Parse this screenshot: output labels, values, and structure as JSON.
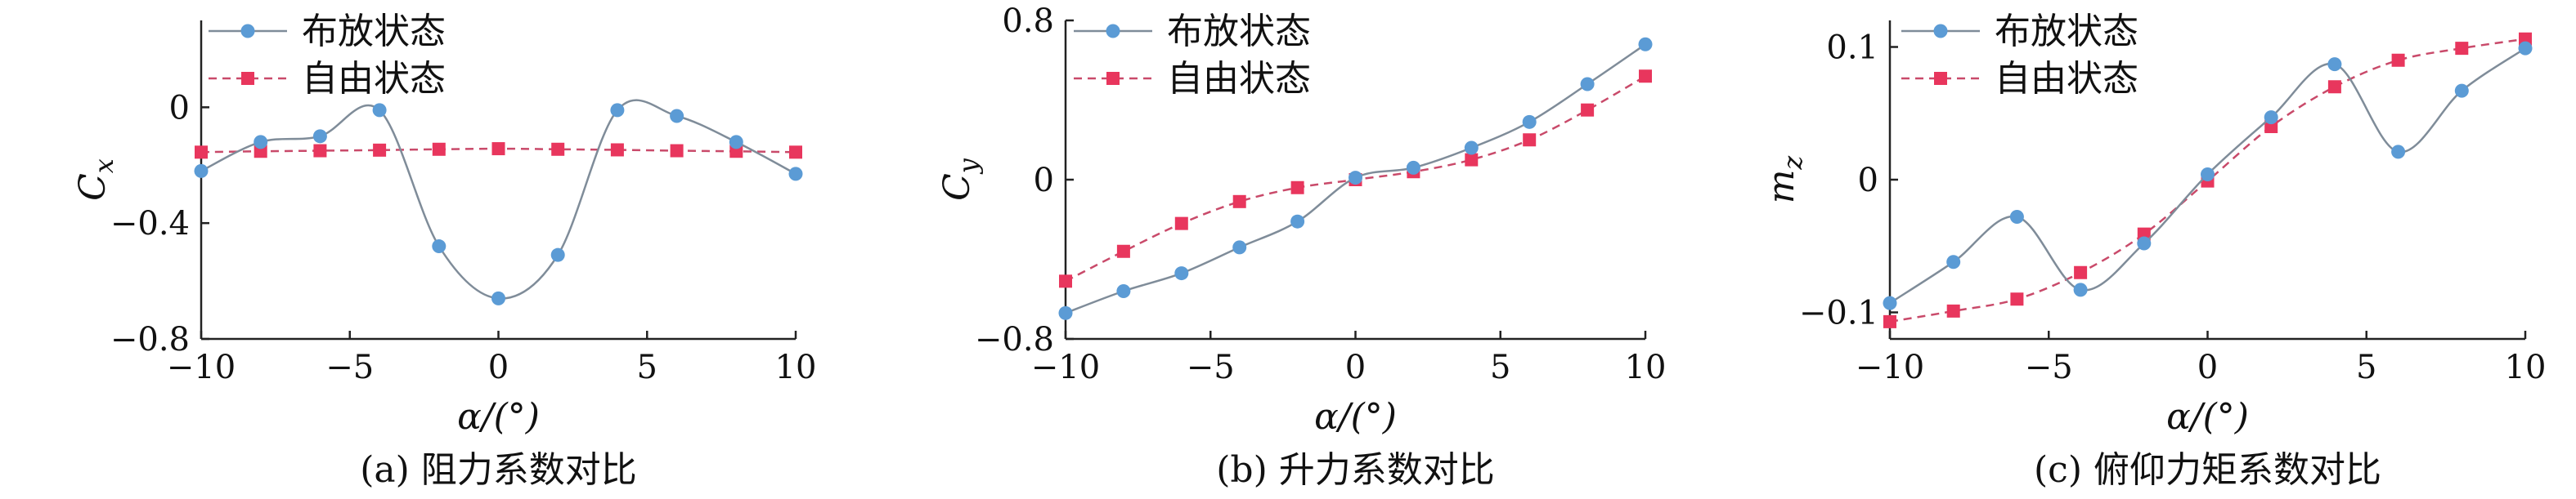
{
  "chart_data": [
    {
      "type": "line",
      "panel": "a",
      "caption": "(a) 阻力系数对比",
      "xlabel": "α/(°)",
      "ylabel": "C_x",
      "ylabel_main": "C",
      "ylabel_sub": "x",
      "xlim": [
        -10,
        10
      ],
      "ylim": [
        -0.8,
        0.3
      ],
      "xticks": [
        -10,
        -5,
        0,
        5,
        10
      ],
      "xtick_labels": [
        "−10",
        "−5",
        "0",
        "5",
        "10"
      ],
      "yticks": [
        0,
        -0.4,
        -0.8
      ],
      "ytick_labels": [
        "0",
        "−0.4",
        "−0.8"
      ],
      "grid": false,
      "legend_position": "top-left",
      "x": [
        -10,
        -8,
        -6,
        -4,
        -2,
        0,
        2,
        4,
        6,
        8,
        10
      ],
      "series": [
        {
          "name": "布放状态",
          "color": "#5b9bd5",
          "line_color": "#7f8c99",
          "marker": "circle",
          "line_style": "solid",
          "values": [
            -0.22,
            -0.12,
            -0.1,
            -0.01,
            -0.48,
            -0.66,
            -0.51,
            -0.01,
            -0.03,
            -0.12,
            -0.23
          ]
        },
        {
          "name": "自由状态",
          "color": "#e8365d",
          "line_color": "#c94a6a",
          "marker": "square",
          "line_style": "dashed",
          "values": [
            -0.155,
            -0.152,
            -0.15,
            -0.148,
            -0.145,
            -0.143,
            -0.145,
            -0.147,
            -0.15,
            -0.152,
            -0.155
          ]
        }
      ]
    },
    {
      "type": "line",
      "panel": "b",
      "caption": "(b) 升力系数对比",
      "xlabel": "α/(°)",
      "ylabel": "C_y",
      "ylabel_main": "C",
      "ylabel_sub": "y",
      "xlim": [
        -10,
        10
      ],
      "ylim": [
        -0.8,
        0.8
      ],
      "xticks": [
        -10,
        -5,
        0,
        5,
        10
      ],
      "xtick_labels": [
        "−10",
        "−5",
        "0",
        "5",
        "10"
      ],
      "yticks": [
        0.8,
        0,
        -0.8
      ],
      "ytick_labels": [
        "0.8",
        "0",
        "−0.8"
      ],
      "grid": false,
      "legend_position": "top-left",
      "x": [
        -10,
        -8,
        -6,
        -4,
        -2,
        0,
        2,
        4,
        6,
        8,
        10
      ],
      "series": [
        {
          "name": "布放状态",
          "color": "#5b9bd5",
          "line_color": "#7f8c99",
          "marker": "circle",
          "line_style": "solid",
          "values": [
            -0.67,
            -0.56,
            -0.47,
            -0.34,
            -0.21,
            0.01,
            0.06,
            0.16,
            0.29,
            0.48,
            0.68
          ]
        },
        {
          "name": "自由状态",
          "color": "#e8365d",
          "line_color": "#c94a6a",
          "marker": "square",
          "line_style": "dashed",
          "values": [
            -0.51,
            -0.36,
            -0.22,
            -0.11,
            -0.04,
            0.0,
            0.04,
            0.1,
            0.2,
            0.35,
            0.52
          ]
        }
      ]
    },
    {
      "type": "line",
      "panel": "c",
      "caption": "(c) 俯仰力矩系数对比",
      "xlabel": "α/(°)",
      "ylabel": "m_z",
      "ylabel_main": "m",
      "ylabel_sub": "z",
      "xlim": [
        -10,
        10
      ],
      "ylim": [
        -0.12,
        0.12
      ],
      "xticks": [
        -10,
        -5,
        0,
        5,
        10
      ],
      "xtick_labels": [
        "−10",
        "−5",
        "0",
        "5",
        "10"
      ],
      "yticks": [
        0.1,
        0,
        -0.1
      ],
      "ytick_labels": [
        "0.1",
        "0",
        "−0.1"
      ],
      "grid": false,
      "legend_position": "top-left",
      "x": [
        -10,
        -8,
        -6,
        -4,
        -2,
        0,
        2,
        4,
        6,
        8,
        10
      ],
      "series": [
        {
          "name": "布放状态",
          "color": "#5b9bd5",
          "line_color": "#7f8c99",
          "marker": "circle",
          "line_style": "solid",
          "values": [
            -0.093,
            -0.062,
            -0.028,
            -0.083,
            -0.048,
            0.004,
            0.047,
            0.087,
            0.021,
            0.067,
            0.099
          ]
        },
        {
          "name": "自由状态",
          "color": "#e8365d",
          "line_color": "#c94a6a",
          "marker": "square",
          "line_style": "dashed",
          "values": [
            -0.107,
            -0.099,
            -0.09,
            -0.07,
            -0.041,
            -0.001,
            0.04,
            0.07,
            0.09,
            0.099,
            0.106
          ]
        }
      ]
    }
  ]
}
